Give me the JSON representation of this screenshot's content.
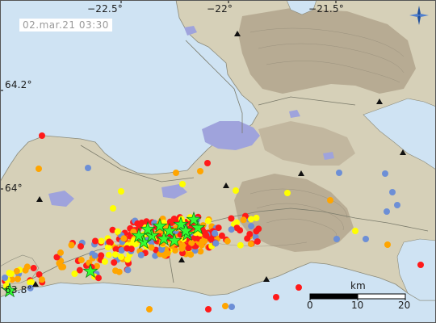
{
  "map": {
    "timestamp": "02.mar.21  03:30",
    "longitude_labels": [
      "−22.5°",
      "−22°",
      "−21.5°"
    ],
    "latitude_labels": [
      "64.2°",
      "64°",
      "63.8°"
    ],
    "scale": {
      "unit": "km",
      "ticks": [
        "0",
        "10",
        "20"
      ]
    },
    "icons": {
      "compass": "compass-rose-icon",
      "volcano": "triangle-marker-icon",
      "large_quake": "green-star-icon"
    },
    "colors": {
      "sea": "#cfe3f3",
      "land": "#d6d0b8",
      "highland": "#b7ab93",
      "lake": "#9fa3dc",
      "quake_recent": "#ff1a1a",
      "quake_hours": "#ffa500",
      "quake_day": "#ffff00",
      "quake_older": "#6d8fd6",
      "large_quake": "#33ff33"
    }
  }
}
